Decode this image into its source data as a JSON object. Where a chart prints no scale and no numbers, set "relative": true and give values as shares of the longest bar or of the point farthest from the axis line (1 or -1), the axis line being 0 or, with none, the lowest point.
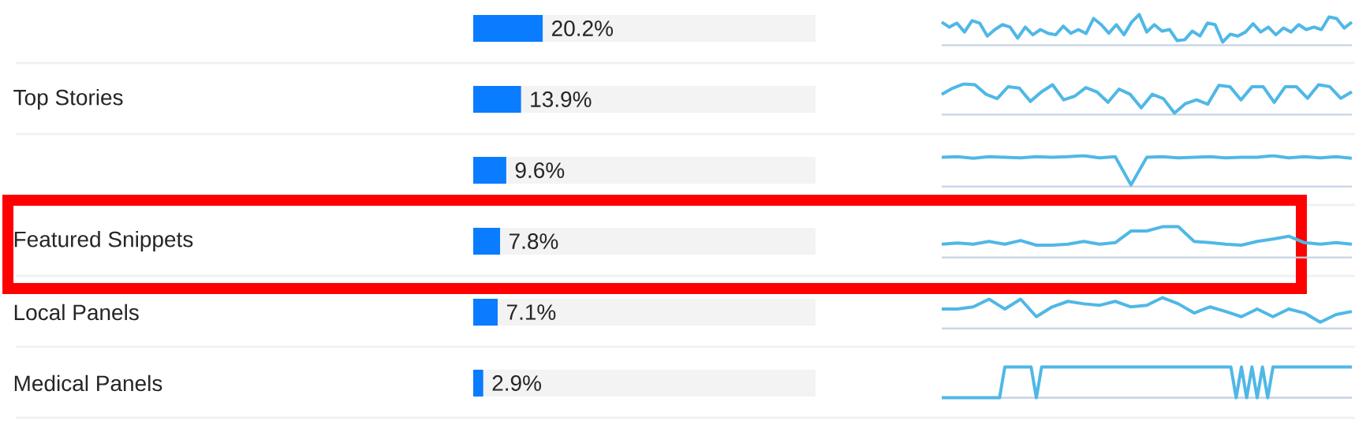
{
  "chart_data": [
    {
      "type": "bar",
      "orientation": "horizontal",
      "categories": [
        null,
        "Top Stories",
        null,
        "Featured Snippets",
        "Local Panels",
        "Medical Panels"
      ],
      "values": [
        20.2,
        13.9,
        9.6,
        7.8,
        7.1,
        2.9
      ],
      "value_labels": [
        "20.2%",
        "13.9%",
        "9.6%",
        "7.8%",
        "7.1%",
        "2.9%"
      ],
      "color": "#0a7cff"
    },
    {
      "type": "line",
      "relative": true,
      "color": "#4fb8e6",
      "categories": [
        null,
        null,
        null,
        null,
        null,
        null,
        null,
        null,
        null,
        null,
        null,
        null,
        null,
        null,
        null,
        null,
        null,
        null,
        null,
        null,
        null,
        null,
        null,
        null,
        null,
        null,
        null,
        null,
        null,
        null,
        null,
        null,
        null,
        null,
        null,
        null,
        null,
        null,
        null,
        null,
        null,
        null,
        null,
        null,
        null,
        null,
        null,
        null,
        null,
        null,
        null,
        null,
        null,
        null,
        null
      ],
      "values": [
        0.75,
        0.59,
        0.72,
        0.43,
        0.8,
        0.72,
        0.3,
        0.51,
        0.67,
        0.59,
        0.23,
        0.59,
        0.34,
        0.51,
        0.39,
        0.34,
        0.62,
        0.39,
        0.51,
        0.38,
        0.87,
        0.67,
        0.39,
        0.67,
        0.34,
        0.75,
        1,
        0.43,
        0.67,
        0.46,
        0.51,
        0.15,
        0.18,
        0.46,
        0.3,
        0.72,
        0.67,
        0.1,
        0.36,
        0.3,
        0.43,
        0.7,
        0.43,
        0.59,
        0.34,
        0.56,
        0.43,
        0.67,
        0.51,
        0.59,
        0.51,
        0.92,
        0.87,
        0.56,
        0.75
      ]
    },
    {
      "type": "line",
      "relative": true,
      "color": "#4fb8e6",
      "categories": [
        null,
        null,
        null,
        null,
        null,
        null,
        null,
        null,
        null,
        null,
        null,
        null,
        null,
        null,
        null,
        null,
        null,
        null,
        null,
        null,
        null,
        null,
        null,
        null,
        null,
        null,
        null,
        null,
        null,
        null,
        null,
        null,
        null,
        null,
        null,
        null,
        null,
        null
      ],
      "values": [
        0.66,
        0.86,
        1,
        0.97,
        0.66,
        0.52,
        0.91,
        0.86,
        0.43,
        0.74,
        0.97,
        0.48,
        0.6,
        0.88,
        0.74,
        0.4,
        0.83,
        0.66,
        0.22,
        0.66,
        0.52,
        0.05,
        0.36,
        0.48,
        0.34,
        0.95,
        0.91,
        0.48,
        0.91,
        0.91,
        0.4,
        0.91,
        0.91,
        0.53,
        0.97,
        0.91,
        0.53,
        0.74
      ]
    },
    {
      "type": "line",
      "relative": true,
      "color": "#4fb8e6",
      "categories": [
        null,
        null,
        null,
        null,
        null,
        null,
        null,
        null,
        null,
        null,
        null,
        null,
        null,
        null,
        null,
        null,
        null,
        null,
        null,
        null,
        null,
        null,
        null,
        null,
        null,
        null,
        null
      ],
      "values": [
        0.95,
        0.97,
        0.92,
        0.97,
        0.95,
        0.93,
        0.97,
        0.95,
        0.97,
        1,
        0.93,
        0.97,
        0.05,
        0.95,
        0.97,
        0.93,
        0.95,
        0.97,
        0.93,
        0.95,
        0.95,
        1,
        0.93,
        0.97,
        0.93,
        0.97,
        0.92
      ]
    },
    {
      "type": "line",
      "relative": true,
      "color": "#4fb8e6",
      "categories": [
        null,
        null,
        null,
        null,
        null,
        null,
        null,
        null,
        null,
        null,
        null,
        null,
        null,
        null,
        null,
        null,
        null,
        null,
        null,
        null,
        null,
        null,
        null,
        null,
        null,
        null,
        null
      ],
      "values": [
        0.43,
        0.47,
        0.43,
        0.52,
        0.43,
        0.55,
        0.4,
        0.4,
        0.43,
        0.52,
        0.43,
        0.48,
        0.86,
        0.86,
        1,
        1,
        0.52,
        0.48,
        0.43,
        0.4,
        0.52,
        0.6,
        0.69,
        0.48,
        0.43,
        0.48,
        0.43
      ]
    },
    {
      "type": "line",
      "relative": true,
      "color": "#4fb8e6",
      "categories": [
        null,
        null,
        null,
        null,
        null,
        null,
        null,
        null,
        null,
        null,
        null,
        null,
        null,
        null,
        null,
        null,
        null,
        null,
        null,
        null,
        null,
        null,
        null,
        null,
        null,
        null,
        null
      ],
      "values": [
        0.63,
        0.63,
        0.7,
        0.95,
        0.63,
        0.95,
        0.38,
        0.7,
        0.88,
        0.8,
        0.75,
        0.88,
        0.7,
        0.75,
        1,
        0.8,
        0.5,
        0.7,
        0.55,
        0.38,
        0.63,
        0.38,
        0.63,
        0.5,
        0.2,
        0.45,
        0.55
      ]
    },
    {
      "type": "line",
      "relative": true,
      "color": "#4fb8e6",
      "categories": [
        null,
        null,
        null,
        null,
        null,
        null,
        null,
        null,
        null,
        null,
        null,
        null,
        null,
        null,
        null,
        null,
        null,
        null,
        null,
        null,
        null,
        null,
        null,
        null,
        null,
        null,
        null,
        null,
        null,
        null,
        null,
        null,
        null,
        null,
        null,
        null,
        null,
        null,
        null,
        null,
        null,
        null,
        null,
        null,
        null,
        null,
        null,
        null,
        null,
        null,
        null,
        null,
        null,
        null,
        null,
        null,
        null,
        null,
        null,
        null,
        null,
        null,
        null,
        null,
        null,
        null,
        null,
        null,
        null,
        null,
        null,
        null,
        null,
        null,
        null,
        null,
        null,
        null,
        null
      ],
      "values": [
        0,
        0,
        0,
        0,
        0,
        0,
        0,
        0,
        0,
        0,
        0,
        0,
        1,
        1,
        1,
        1,
        1,
        1,
        0,
        1,
        1,
        1,
        1,
        1,
        1,
        1,
        1,
        1,
        1,
        1,
        1,
        1,
        1,
        1,
        1,
        1,
        1,
        1,
        1,
        1,
        1,
        1,
        1,
        1,
        1,
        1,
        1,
        1,
        1,
        1,
        1,
        1,
        1,
        1,
        1,
        1,
        0,
        1,
        0,
        1,
        0,
        1,
        0,
        1,
        1,
        1,
        1,
        1,
        1,
        1,
        1,
        1,
        1,
        1,
        1,
        1,
        1,
        1,
        1
      ]
    }
  ]
}
